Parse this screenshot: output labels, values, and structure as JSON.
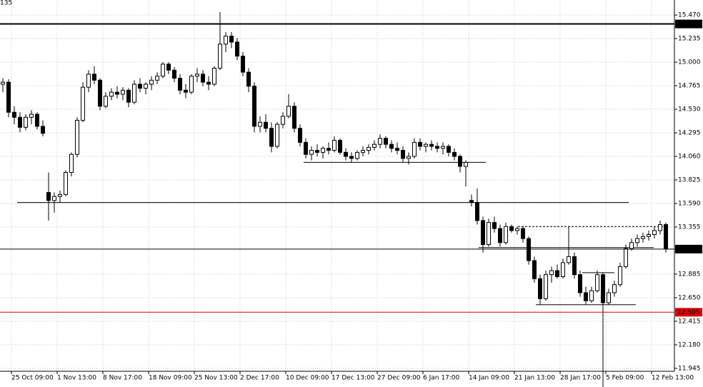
{
  "chart_data": {
    "type": "candlestick",
    "corner_label": "135",
    "ylim": [
      11.916,
      15.62
    ],
    "yticks": [
      {
        "value": 15.47,
        "label": "15.470"
      },
      15.235,
      {
        "value": 15.0,
        "label": "15.000"
      },
      14.765,
      {
        "value": 14.53,
        "label": "14.530"
      },
      14.295,
      {
        "value": 14.06,
        "label": "14.060"
      },
      13.825,
      {
        "value": 13.59,
        "label": "13.590"
      },
      13.355,
      12.885,
      {
        "value": 12.65,
        "label": "12.650"
      },
      12.415,
      {
        "value": 12.18,
        "label": "12.180"
      },
      11.945
    ],
    "grid": true,
    "categories": [
      null,
      null,
      "25 Oct 09:00",
      null,
      null,
      null,
      null,
      null,
      null,
      null,
      "1 Nov 13:00",
      null,
      null,
      null,
      null,
      null,
      null,
      null,
      "8 Nov 17:00",
      null,
      null,
      null,
      null,
      null,
      null,
      null,
      "18 Nov 09:00",
      null,
      null,
      null,
      null,
      null,
      null,
      null,
      "25 Nov 13:00",
      null,
      null,
      null,
      null,
      null,
      null,
      null,
      "2 Dec 17:00",
      null,
      null,
      null,
      null,
      null,
      null,
      null,
      "10 Dec 09:00",
      null,
      null,
      null,
      null,
      null,
      null,
      null,
      "17 Dec 13:00",
      null,
      null,
      null,
      null,
      null,
      null,
      null,
      "27 Dec 09:00",
      null,
      null,
      null,
      null,
      null,
      null,
      null,
      "6 Jan 17:00",
      null,
      null,
      null,
      null,
      null,
      null,
      null,
      "14 Jan 09:00",
      null,
      null,
      null,
      null,
      null,
      null,
      null,
      "21 Jan 13:00",
      null,
      null,
      null,
      null,
      null,
      null,
      null,
      "28 Jan 17:00",
      null,
      null,
      null,
      null,
      null,
      null,
      null,
      "5 Feb 09:00",
      null,
      null,
      null,
      null,
      null,
      null,
      null,
      "12 Feb 13:00",
      null,
      null
    ],
    "ohlc": [
      [
        14.78,
        14.84,
        14.7,
        14.8
      ],
      [
        14.8,
        14.83,
        14.45,
        14.5
      ],
      [
        14.5,
        14.56,
        14.38,
        14.45
      ],
      [
        14.45,
        14.5,
        14.3,
        14.35
      ],
      [
        14.35,
        14.48,
        14.32,
        14.45
      ],
      [
        14.45,
        14.52,
        14.38,
        14.48
      ],
      [
        14.48,
        14.5,
        14.33,
        14.36
      ],
      [
        14.36,
        14.42,
        14.26,
        14.29
      ],
      [
        13.7,
        13.9,
        13.42,
        13.62
      ],
      [
        13.62,
        13.7,
        13.5,
        13.66
      ],
      [
        13.66,
        13.72,
        13.6,
        13.68
      ],
      [
        13.68,
        13.92,
        13.66,
        13.9
      ],
      [
        13.9,
        14.1,
        13.86,
        14.08
      ],
      [
        14.08,
        14.45,
        14.05,
        14.42
      ],
      [
        14.42,
        14.8,
        14.4,
        14.75
      ],
      [
        14.75,
        14.92,
        14.7,
        14.88
      ],
      [
        14.88,
        14.96,
        14.78,
        14.82
      ],
      [
        14.82,
        14.84,
        14.52,
        14.56
      ],
      [
        14.56,
        14.7,
        14.54,
        14.66
      ],
      [
        14.66,
        14.74,
        14.62,
        14.7
      ],
      [
        14.7,
        14.76,
        14.64,
        14.68
      ],
      [
        14.68,
        14.75,
        14.62,
        14.72
      ],
      [
        14.72,
        14.74,
        14.55,
        14.6
      ],
      [
        14.6,
        14.82,
        14.58,
        14.78
      ],
      [
        14.78,
        14.84,
        14.7,
        14.74
      ],
      [
        14.74,
        14.8,
        14.68,
        14.78
      ],
      [
        14.78,
        14.86,
        14.72,
        14.82
      ],
      [
        14.82,
        14.9,
        14.78,
        14.86
      ],
      [
        14.86,
        15.0,
        14.84,
        14.98
      ],
      [
        14.98,
        15.0,
        14.88,
        14.92
      ],
      [
        14.92,
        14.95,
        14.8,
        14.84
      ],
      [
        14.84,
        14.88,
        14.68,
        14.72
      ],
      [
        14.72,
        14.78,
        14.64,
        14.7
      ],
      [
        14.7,
        14.88,
        14.68,
        14.86
      ],
      [
        14.86,
        14.94,
        14.8,
        14.88
      ],
      [
        14.88,
        14.92,
        14.76,
        14.8
      ],
      [
        14.8,
        14.86,
        14.72,
        14.78
      ],
      [
        14.78,
        14.96,
        14.76,
        14.94
      ],
      [
        14.94,
        15.5,
        14.92,
        15.18
      ],
      [
        15.18,
        15.3,
        15.1,
        15.26
      ],
      [
        15.26,
        15.3,
        15.14,
        15.2
      ],
      [
        15.2,
        15.24,
        15.02,
        15.06
      ],
      [
        15.06,
        15.1,
        14.86,
        14.9
      ],
      [
        14.9,
        14.94,
        14.7,
        14.76
      ],
      [
        14.76,
        14.8,
        14.3,
        14.36
      ],
      [
        14.36,
        14.46,
        14.3,
        14.4
      ],
      [
        14.4,
        14.48,
        14.3,
        14.34
      ],
      [
        14.34,
        14.4,
        14.1,
        14.16
      ],
      [
        14.16,
        14.4,
        14.14,
        14.38
      ],
      [
        14.38,
        14.5,
        14.34,
        14.46
      ],
      [
        14.46,
        14.68,
        14.44,
        14.56
      ],
      [
        14.56,
        14.6,
        14.3,
        14.34
      ],
      [
        14.34,
        14.38,
        14.16,
        14.2
      ],
      [
        14.2,
        14.24,
        14.04,
        14.08
      ],
      [
        14.08,
        14.16,
        14.02,
        14.12
      ],
      [
        14.12,
        14.18,
        14.06,
        14.1
      ],
      [
        14.1,
        14.16,
        14.04,
        14.14
      ],
      [
        14.14,
        14.2,
        14.08,
        14.12
      ],
      [
        14.12,
        14.26,
        14.1,
        14.22
      ],
      [
        14.22,
        14.24,
        14.08,
        14.1
      ],
      [
        14.1,
        14.14,
        14.02,
        14.06
      ],
      [
        14.06,
        14.1,
        14.0,
        14.04
      ],
      [
        14.04,
        14.12,
        14.02,
        14.1
      ],
      [
        14.1,
        14.16,
        14.06,
        14.12
      ],
      [
        14.12,
        14.18,
        14.08,
        14.15
      ],
      [
        14.15,
        14.22,
        14.12,
        14.18
      ],
      [
        14.18,
        14.28,
        14.14,
        14.24
      ],
      [
        14.24,
        14.26,
        14.14,
        14.18
      ],
      [
        14.18,
        14.22,
        14.1,
        14.14
      ],
      [
        14.14,
        14.2,
        14.08,
        14.12
      ],
      [
        14.12,
        14.16,
        14.0,
        14.04
      ],
      [
        14.04,
        14.1,
        13.98,
        14.06
      ],
      [
        14.06,
        14.24,
        14.04,
        14.2
      ],
      [
        14.2,
        14.24,
        14.12,
        14.16
      ],
      [
        14.16,
        14.2,
        14.1,
        14.18
      ],
      [
        14.18,
        14.22,
        14.12,
        14.16
      ],
      [
        14.16,
        14.2,
        14.1,
        14.14
      ],
      [
        14.14,
        14.2,
        14.08,
        14.16
      ],
      [
        14.16,
        14.18,
        14.06,
        14.1
      ],
      [
        14.1,
        14.14,
        14.02,
        14.06
      ],
      [
        14.06,
        14.08,
        13.9,
        13.96
      ],
      [
        13.96,
        14.02,
        13.76,
        14.0
      ],
      [
        13.62,
        13.68,
        13.56,
        13.6
      ],
      [
        13.6,
        13.74,
        13.38,
        13.42
      ],
      [
        13.42,
        13.46,
        13.1,
        13.18
      ],
      [
        13.18,
        13.44,
        13.16,
        13.4
      ],
      [
        13.4,
        13.46,
        13.3,
        13.34
      ],
      [
        13.34,
        13.38,
        13.16,
        13.2
      ],
      [
        13.2,
        13.4,
        13.18,
        13.36
      ],
      [
        13.36,
        13.38,
        13.3,
        13.32
      ],
      [
        13.32,
        13.36,
        13.28,
        13.34
      ],
      [
        13.34,
        13.36,
        13.2,
        13.24
      ],
      [
        13.24,
        13.26,
        12.98,
        13.02
      ],
      [
        13.02,
        13.06,
        12.8,
        12.84
      ],
      [
        12.84,
        12.88,
        12.58,
        12.64
      ],
      [
        12.64,
        12.92,
        12.62,
        12.88
      ],
      [
        12.88,
        12.96,
        12.8,
        12.92
      ],
      [
        12.92,
        12.98,
        12.84,
        12.86
      ],
      [
        12.86,
        13.04,
        12.84,
        13.0
      ],
      [
        13.0,
        13.36,
        12.98,
        13.06
      ],
      [
        13.06,
        13.1,
        12.84,
        12.88
      ],
      [
        12.88,
        12.92,
        12.66,
        12.7
      ],
      [
        12.7,
        12.76,
        12.58,
        12.62
      ],
      [
        12.62,
        12.76,
        12.6,
        12.72
      ],
      [
        12.72,
        12.92,
        12.7,
        12.88
      ],
      [
        12.88,
        12.9,
        11.75,
        12.6
      ],
      [
        12.6,
        12.74,
        12.58,
        12.7
      ],
      [
        12.7,
        12.82,
        12.66,
        12.78
      ],
      [
        12.78,
        13.0,
        12.76,
        12.96
      ],
      [
        12.96,
        13.18,
        12.94,
        13.14
      ],
      [
        13.14,
        13.24,
        13.12,
        13.2
      ],
      [
        13.2,
        13.28,
        13.16,
        13.24
      ],
      [
        13.24,
        13.3,
        13.2,
        13.26
      ],
      [
        13.26,
        13.32,
        13.22,
        13.28
      ],
      [
        13.28,
        13.36,
        13.24,
        13.32
      ],
      [
        13.32,
        13.42,
        13.28,
        13.38
      ],
      [
        13.38,
        13.4,
        13.1,
        13.14
      ]
    ],
    "price_lines": [
      {
        "value": 15.381,
        "color": "#000000"
      },
      {
        "value": 13.135,
        "color": "#000000"
      },
      {
        "value": 12.505,
        "color": "#e00000"
      }
    ],
    "levels": [
      14.0,
      13.6,
      13.15,
      13.36,
      12.58,
      12.9
    ]
  }
}
